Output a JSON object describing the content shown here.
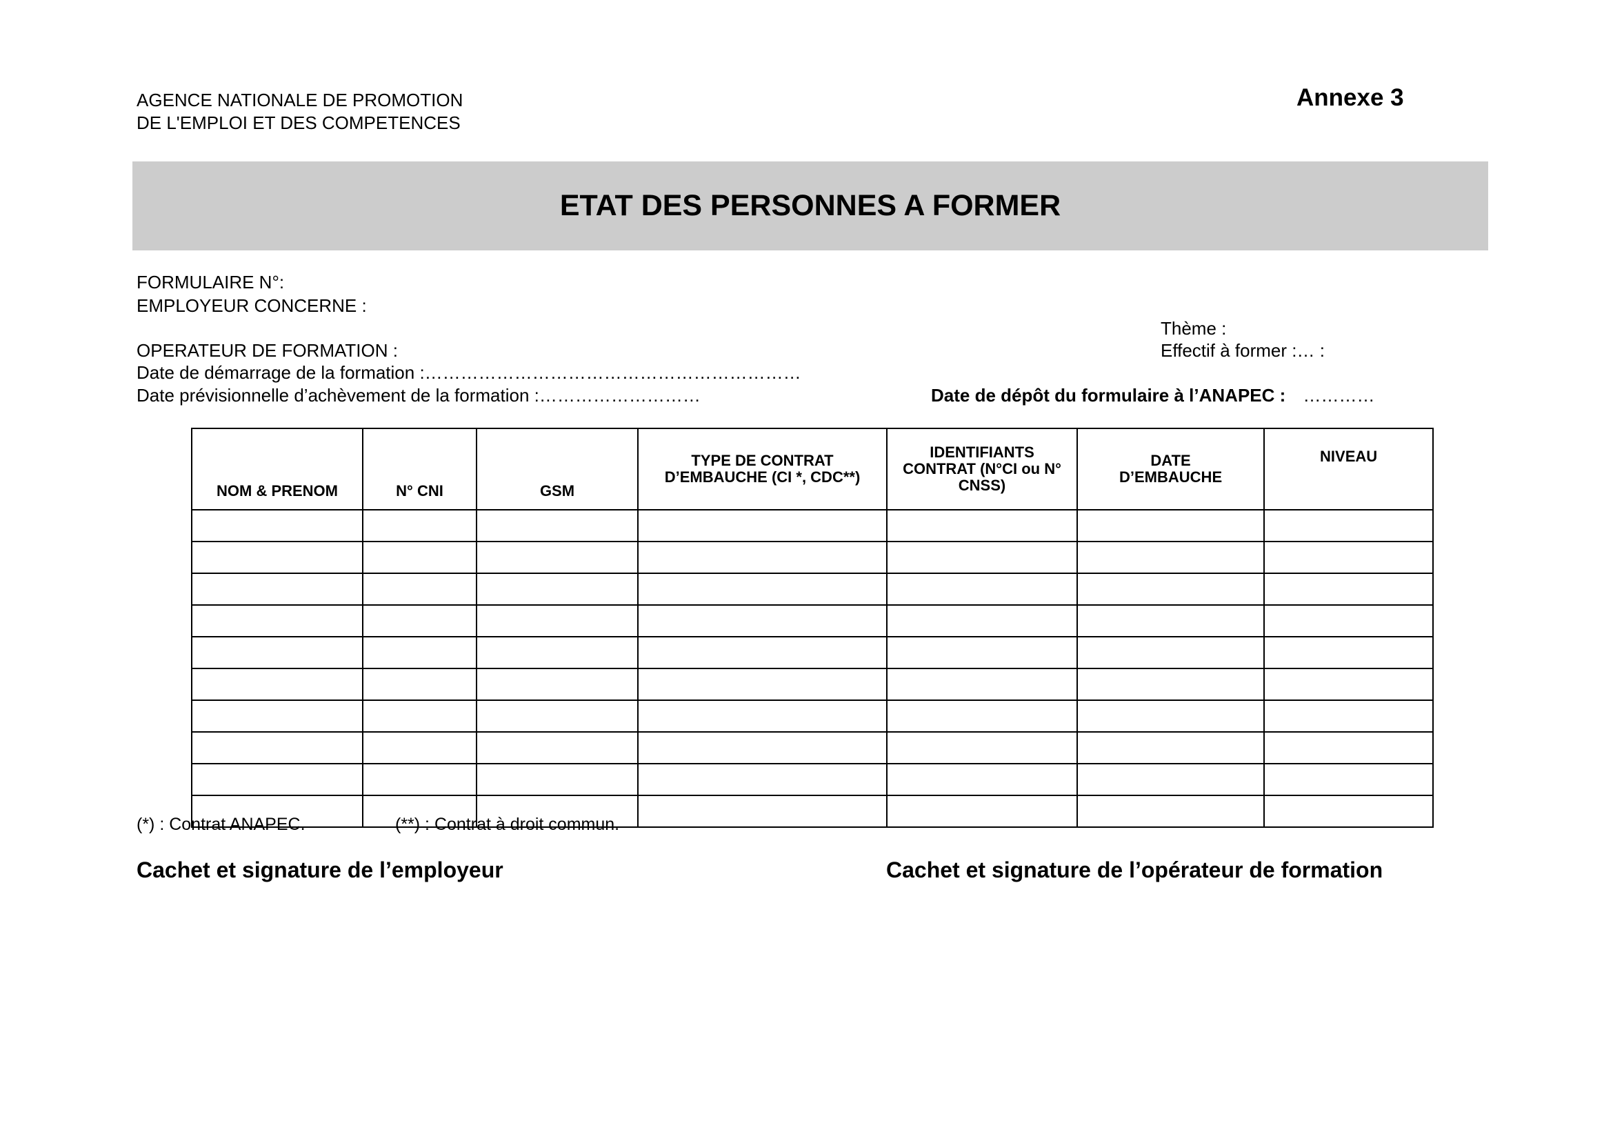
{
  "header": {
    "agency_line1": "AGENCE NATIONALE DE PROMOTION",
    "agency_line2": "DE L'EMPLOI ET DES COMPETENCES",
    "annex": "Annexe 3"
  },
  "title": "ETAT DES PERSONNES A FORMER",
  "fields": {
    "formulaire": "FORMULAIRE N°:",
    "employeur": "EMPLOYEUR CONCERNE :",
    "operateur": "OPERATEUR DE FORMATION :",
    "date_demarrage": "Date de démarrage de la formation :………………………………………………………",
    "date_achevement": "Date prévisionnelle d’achèvement de la formation :………………………",
    "theme": "Thème :",
    "effectif": "Effectif à former :… :",
    "date_depot_label": "Date de dépôt du formulaire à l’ANAPEC :",
    "date_depot_value": "…………"
  },
  "table": {
    "headers": [
      "NOM & PRENOM",
      "N° CNI",
      "GSM",
      "TYPE DE CONTRAT D’EMBAUCHE (CI *, CDC**)",
      "IDENTIFIANTS CONTRAT (N°CI ou N° CNSS)",
      "DATE D’EMBAUCHE",
      "NIVEAU"
    ],
    "row_count": 10
  },
  "footnotes": {
    "ci": "(*) : Contrat ANAPEC.",
    "cdc": "(**) : Contrat à droit commun."
  },
  "signatures": {
    "employeur": "Cachet et signature de l’employeur",
    "operateur": "Cachet et signature de l’opérateur de formation"
  }
}
